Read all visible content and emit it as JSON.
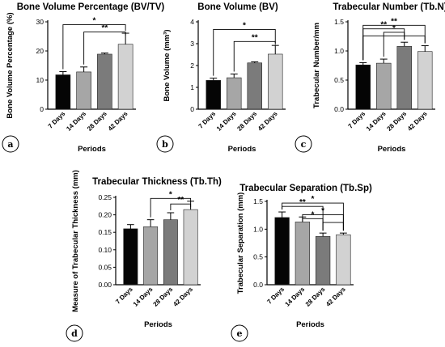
{
  "chart_data": [
    {
      "type": "bar",
      "panel_label": "a",
      "title": "Bone Volume Percentage (BV/TV)",
      "xlabel": "Periods",
      "ylabel": "Bone Volume Percentage (%)",
      "ylim": [
        0,
        30
      ],
      "yticks": [
        "0",
        "10",
        "20",
        "30"
      ],
      "categories": [
        "7 Days",
        "14 Days",
        "28 Days",
        "42 Days"
      ],
      "values": [
        11.8,
        12.8,
        18.9,
        22.3
      ],
      "errors": [
        1.1,
        1.7,
        0.4,
        3.8
      ],
      "significance": [
        {
          "from": 0,
          "to": 3,
          "label": "*",
          "y": 29.0
        },
        {
          "from": 1,
          "to": 3,
          "label": "**",
          "y": 26.5
        }
      ]
    },
    {
      "type": "bar",
      "panel_label": "b",
      "title": "Bone Volume (BV)",
      "xlabel": "Periods",
      "ylabel": "Bone Volume (mm³)",
      "ylim": [
        0,
        4
      ],
      "yticks": [
        "0",
        "1",
        "2",
        "3",
        "4"
      ],
      "categories": [
        "7 Days",
        "14 Days",
        "28 Days",
        "42 Days"
      ],
      "values": [
        1.32,
        1.44,
        2.12,
        2.52
      ],
      "errors": [
        0.1,
        0.17,
        0.05,
        0.4
      ],
      "significance": [
        {
          "from": 0,
          "to": 3,
          "label": "*",
          "y": 3.65
        },
        {
          "from": 1,
          "to": 3,
          "label": "**",
          "y": 3.1
        }
      ]
    },
    {
      "type": "bar",
      "panel_label": "c",
      "title": "Trabecular Number (Tb.N)",
      "xlabel": "Periods",
      "ylabel": "Trabecular Number/mm",
      "ylim": [
        0,
        1.5
      ],
      "yticks": [
        "0.0",
        "0.5",
        "1.0",
        "1.5"
      ],
      "categories": [
        "7 Days",
        "14 Days",
        "28 Days",
        "42 Days"
      ],
      "values": [
        0.76,
        0.79,
        1.08,
        0.99
      ],
      "errors": [
        0.04,
        0.07,
        0.07,
        0.1
      ],
      "significance": [
        {
          "from": 0,
          "to": 3,
          "label": "**",
          "y": 1.44
        },
        {
          "from": 0,
          "to": 2,
          "label": "**",
          "y": 1.38
        },
        {
          "from": 1,
          "to": 2,
          "label": "*",
          "y": 1.32
        },
        {
          "from": 0,
          "to": 3,
          "label": "",
          "y": 1.26
        }
      ]
    },
    {
      "type": "bar",
      "panel_label": "d",
      "title": "Trabecular Thickness (Tb.Th)",
      "xlabel": "Periods",
      "ylabel": "Measure of Trabecular Thickness (mm)",
      "ylim": [
        0,
        0.25
      ],
      "yticks": [
        "0.00",
        "0.05",
        "0.10",
        "0.15",
        "0.20",
        "0.25"
      ],
      "categories": [
        "7 Days",
        "14 Days",
        "28 Days",
        "42 Days"
      ],
      "values": [
        0.16,
        0.166,
        0.186,
        0.215
      ],
      "errors": [
        0.012,
        0.02,
        0.02,
        0.024
      ],
      "significance": [
        {
          "from": 1,
          "to": 3,
          "label": "*",
          "y": 0.247
        },
        {
          "from": 2,
          "to": 3,
          "label": "**",
          "y": 0.231
        }
      ]
    },
    {
      "type": "bar",
      "panel_label": "e",
      "title": "Trabecular Separation (Tb.Sp)",
      "xlabel": "Periods",
      "ylabel": "Trabecular Separation (mm)",
      "ylim": [
        0,
        1.5
      ],
      "yticks": [
        "0.0",
        "0.5",
        "1.0",
        "1.5"
      ],
      "categories": [
        "7 Days",
        "14 Days",
        "28 Days",
        "42 Days"
      ],
      "values": [
        1.21,
        1.13,
        0.87,
        0.9
      ],
      "errors": [
        0.1,
        0.09,
        0.06,
        0.03
      ],
      "significance": [
        {
          "from": 0,
          "to": 3,
          "label": "*",
          "y": 1.47
        },
        {
          "from": 0,
          "to": 2,
          "label": "**",
          "y": 1.41
        },
        {
          "from": 1,
          "to": 3,
          "label": "*",
          "y": 1.26
        },
        {
          "from": 1,
          "to": 2,
          "label": "*",
          "y": 1.19
        },
        {
          "from": 2,
          "to": 3,
          "label": "",
          "y": 1.12
        }
      ]
    }
  ],
  "bar_colors": [
    "#050505",
    "#a6a6a6",
    "#7b7b7b",
    "#d2d2d2"
  ]
}
